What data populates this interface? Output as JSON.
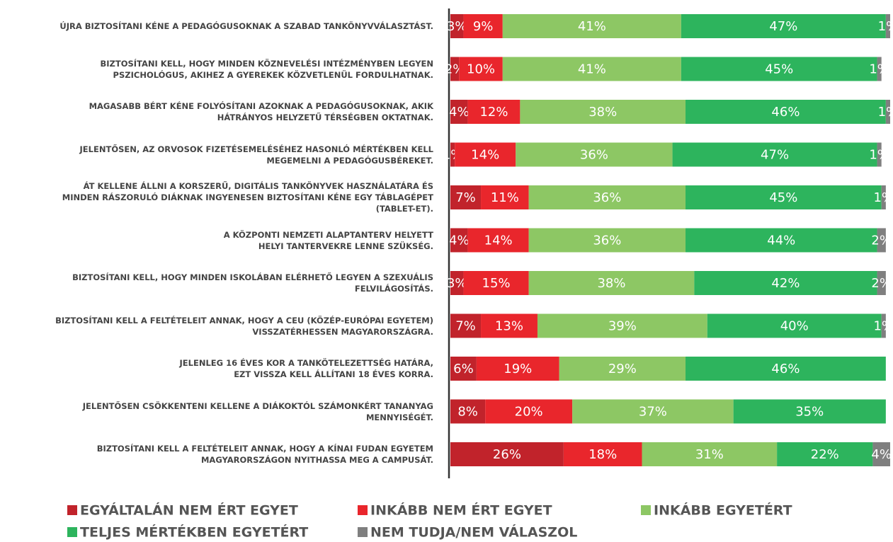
{
  "chart_data": {
    "type": "stacked_barh",
    "categories": [
      "ÚJRA BIZTOSÍTANI KÉNE A PEDAGÓGUSOKNAK A SZABAD TANKÖNYVVÁLASZTÁST.",
      "BIZTOSÍTANI KELL, HOGY MINDEN KÖZNEVELÉSI INTÉZMÉNYBEN LEGYEN\nPSZICHOLÓGUS, AKIHEZ A GYEREKEK KÖZVETLENÜL FORDULHATNAK.",
      "MAGASABB BÉRT KÉNE FOLYÓSÍTANI AZOKNAK A PEDAGÓGUSOKNAK, AKIK\nHÁTRÁNYOS HELYZETŰ TÉRSÉGBEN OKTATNAK.",
      "JELENTŐSEN, AZ ORVOSOK FIZETÉSEMELÉSÉHEZ HASONLÓ MÉRTÉKBEN KELL\nMEGEMELNI A PEDAGÓGUSBÉREKET.",
      "ÁT KELLENE ÁLLNI A KORSZERŰ, DIGITÁLIS TANKÖNYVEK HASZNÁLATÁRA ÉS\nMINDEN RÁSZORULÓ DIÁKNAK INGYENESEN BIZTOSÍTANI KÉNE EGY TÁBLAGÉPET\n(TABLET-ET).",
      "A KÖZPONTI NEMZETI ALAPTANTERV HELYETT\nHELYI TANTERVEKRE LENNE SZÜKSÉG.",
      "BIZTOSÍTANI KELL, HOGY MINDEN ISKOLÁBAN ELÉRHETŐ LEGYEN A SZEXUÁLIS\nFELVILÁGOSÍTÁS.",
      "BIZTOSÍTANI KELL A FELTÉTELEIT ANNAK, HOGY A CEU (KÖZÉP-EURÓPAI EGYETEM)\nVISSZATÉRHESSEN MAGYARORSZÁGRA.",
      "JELENLEG 16 ÉVES KOR A TANKÖTELEZETTSÉG HATÁRA,\nEZT VISSZA KELL ÁLLÍTANI 18  ÉVES KORRA.",
      "JELENTŐSEN CSÖKKENTENI KELLENE A DIÁKOKTÓL SZÁMONKÉRT TANANYAG\nMENNYISÉGÉT.",
      "BIZTOSÍTANI KELL A FELTÉTELEIT ANNAK, HOGY A KÍNAI FUDAN EGYETEM\nMAGYARORSZÁGON NYITHASSA MEG A CAMPUSÁT."
    ],
    "series": [
      {
        "name": "EGYÁLTALÁN NEM ÉRT EGYET",
        "color": "#c1232b",
        "values": [
          3,
          2,
          4,
          1,
          7,
          4,
          3,
          7,
          6,
          8,
          26
        ],
        "value_labels": [
          "3%",
          "2%",
          "4%",
          "1%",
          "7%",
          "4%",
          "3%",
          "7%",
          "6%",
          "8%",
          "26%"
        ]
      },
      {
        "name": "INKÁBB NEM ÉRT EGYET",
        "color": "#e9262c",
        "values": [
          9,
          10,
          12,
          14,
          11,
          14,
          15,
          13,
          19,
          20,
          18
        ],
        "value_labels": [
          "9%",
          "10%",
          "12%",
          "14%",
          "11%",
          "14%",
          "15%",
          "13%",
          "19%",
          "20%",
          "18%"
        ]
      },
      {
        "name": "INKÁBB EGYETÉRT",
        "color": "#8dc764",
        "values": [
          41,
          41,
          38,
          36,
          36,
          36,
          38,
          39,
          29,
          37,
          31
        ],
        "value_labels": [
          "41%",
          "41%",
          "38%",
          "36%",
          "36%",
          "36%",
          "38%",
          "39%",
          "29%",
          "37%",
          "31%"
        ]
      },
      {
        "name": "TELJES MÉRTÉKBEN EGYETÉRT",
        "color": "#2db45d",
        "values": [
          47,
          45,
          46,
          47,
          45,
          44,
          42,
          40,
          46,
          35,
          22
        ],
        "value_labels": [
          "47%",
          "45%",
          "46%",
          "47%",
          "45%",
          "44%",
          "42%",
          "40%",
          "46%",
          "35%",
          "22%"
        ]
      },
      {
        "name": "NEM TUDJA/NEM VÁLASZOL",
        "color": "#7f7f7f",
        "values": [
          1,
          1,
          1,
          1,
          1,
          2,
          2,
          1,
          null,
          null,
          4
        ],
        "value_labels": [
          "1%",
          "1%",
          "1%",
          "1%",
          "1%",
          "2%",
          "2%",
          "1%",
          null,
          null,
          "4%"
        ]
      }
    ],
    "xlim": [
      0,
      101
    ]
  }
}
